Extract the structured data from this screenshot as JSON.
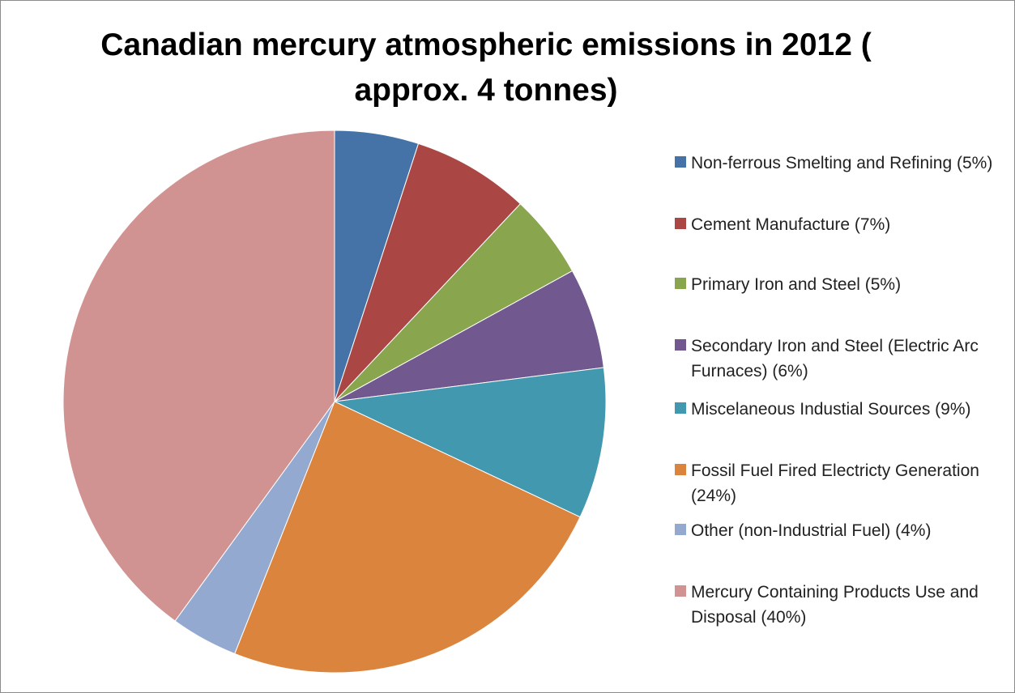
{
  "chart_data": {
    "type": "pie",
    "title": "Canadian mercury atmospheric emissions in 2012 ( approx. 4 tonnes)",
    "slices": [
      {
        "label": "Non-ferrous Smelting and Refining (5%)",
        "value": 5,
        "color": "#4572A7"
      },
      {
        "label": "Cement Manufacture (7%)",
        "value": 7,
        "color": "#AA4643"
      },
      {
        "label": "Primary Iron and Steel (5%)",
        "value": 5,
        "color": "#89A54E"
      },
      {
        "label": "Secondary Iron and Steel (Electric Arc Furnaces) (6%)",
        "value": 6,
        "color": "#71588F"
      },
      {
        "label": "Miscelaneous Industial Sources (9%)",
        "value": 9,
        "color": "#4198AF"
      },
      {
        "label": "Fossil Fuel Fired Electricty Generation (24%)",
        "value": 24,
        "color": "#DB843D"
      },
      {
        "label": "Other (non-Industrial Fuel)  (4%)",
        "value": 4,
        "color": "#93A9CF"
      },
      {
        "label": "Mercury Containing Products Use and Disposal (40%)",
        "value": 40,
        "color": "#D19392"
      }
    ],
    "legend_position": "right"
  }
}
